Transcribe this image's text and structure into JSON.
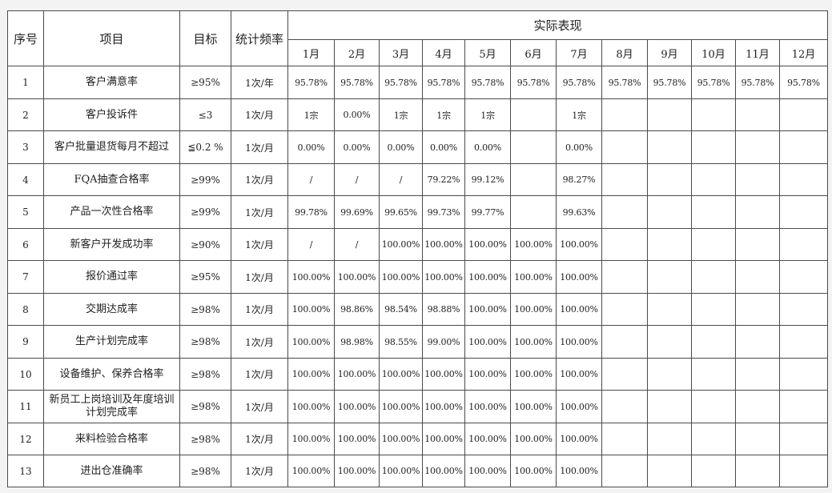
{
  "header": {
    "seq": "序号",
    "item": "项目",
    "target": "目标",
    "frequency": "统计频率",
    "actual": "实际表现",
    "months": [
      "1月",
      "2月",
      "3月",
      "4月",
      "5月",
      "6月",
      "7月",
      "8月",
      "9月",
      "10月",
      "11月",
      "12月"
    ]
  },
  "rows": [
    {
      "seq": "1",
      "item": "客户满意率",
      "target": "≥95%",
      "freq": "1次/年",
      "values": [
        "95.78%",
        "95.78%",
        "95.78%",
        "95.78%",
        "95.78%",
        "95.78%",
        "95.78%",
        "95.78%",
        "95.78%",
        "95.78%",
        "95.78%",
        "95.78%"
      ]
    },
    {
      "seq": "2",
      "item": "客户投诉件",
      "target": "≤3",
      "freq": "1次/月",
      "values": [
        "1宗",
        "0.00%",
        "1宗",
        "1宗",
        "1宗",
        "",
        "1宗",
        "",
        "",
        "",
        "",
        ""
      ]
    },
    {
      "seq": "3",
      "item": "客户批量退货每月不超过",
      "target": "≦0.2 %",
      "freq": "1次/月",
      "values": [
        "0.00%",
        "0.00%",
        "0.00%",
        "0.00%",
        "0.00%",
        "",
        "0.00%",
        "",
        "",
        "",
        "",
        ""
      ]
    },
    {
      "seq": "4",
      "item": "FQA抽查合格率",
      "target": "≥99%",
      "freq": "1次/月",
      "values": [
        "/",
        "/",
        "/",
        "79.22%",
        "99.12%",
        "",
        "98.27%",
        "",
        "",
        "",
        "",
        ""
      ]
    },
    {
      "seq": "5",
      "item": "产品一次性合格率",
      "target": "≥99%",
      "freq": "1次/月",
      "values": [
        "99.78%",
        "99.69%",
        "99.65%",
        "99.73%",
        "99.77%",
        "",
        "99.63%",
        "",
        "",
        "",
        "",
        ""
      ]
    },
    {
      "seq": "6",
      "item": "新客户开发成功率",
      "target": "≥90%",
      "freq": "1次/月",
      "values": [
        "/",
        "/",
        "100.00%",
        "100.00%",
        "100.00%",
        "100.00%",
        "100.00%",
        "",
        "",
        "",
        "",
        ""
      ]
    },
    {
      "seq": "7",
      "item": "报价通过率",
      "target": "≥95%",
      "freq": "1次/月",
      "values": [
        "100.00%",
        "100.00%",
        "100.00%",
        "100.00%",
        "100.00%",
        "100.00%",
        "100.00%",
        "",
        "",
        "",
        "",
        ""
      ]
    },
    {
      "seq": "8",
      "item": "交期达成率",
      "target": "≥98%",
      "freq": "1次/月",
      "values": [
        "100.00%",
        "98.86%",
        "98.54%",
        "98.88%",
        "100.00%",
        "100.00%",
        "100.00%",
        "",
        "",
        "",
        "",
        ""
      ]
    },
    {
      "seq": "9",
      "item": "生产计划完成率",
      "target": "≥98%",
      "freq": "1次/月",
      "values": [
        "100.00%",
        "98.98%",
        "98.55%",
        "99.00%",
        "100.00%",
        "100.00%",
        "100.00%",
        "",
        "",
        "",
        "",
        ""
      ]
    },
    {
      "seq": "10",
      "item": "设备维护、保养合格率",
      "target": "≥98%",
      "freq": "1次/月",
      "values": [
        "100.00%",
        "100.00%",
        "100.00%",
        "100.00%",
        "100.00%",
        "100.00%",
        "100.00%",
        "",
        "",
        "",
        "",
        ""
      ]
    },
    {
      "seq": "11",
      "item": "新员工上岗培训及年度培训计划完成率",
      "target": "≥98%",
      "freq": "1次/月",
      "values": [
        "100.00%",
        "100.00%",
        "100.00%",
        "100.00%",
        "100.00%",
        "100.00%",
        "100.00%",
        "",
        "",
        "",
        "",
        ""
      ]
    },
    {
      "seq": "12",
      "item": "来料检验合格率",
      "target": "≥98%",
      "freq": "1次/月",
      "values": [
        "100.00%",
        "100.00%",
        "100.00%",
        "100.00%",
        "100.00%",
        "100.00%",
        "100.00%",
        "",
        "",
        "",
        "",
        ""
      ]
    },
    {
      "seq": "13",
      "item": "进出仓准确率",
      "target": "≥98%",
      "freq": "1次/月",
      "values": [
        "100.00%",
        "100.00%",
        "100.00%",
        "100.00%",
        "100.00%",
        "100.00%",
        "100.00%",
        "",
        "",
        "",
        "",
        ""
      ]
    }
  ]
}
